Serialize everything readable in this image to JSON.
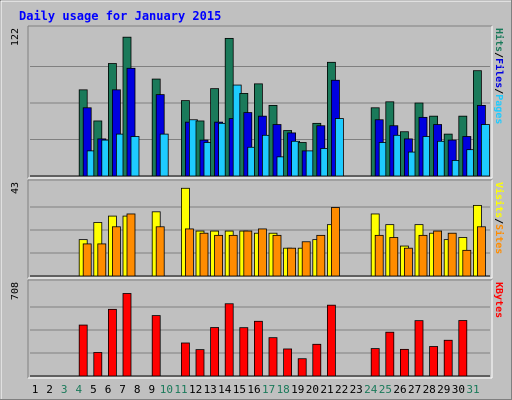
{
  "chart_data": {
    "type": "bar",
    "title": "Daily usage for January 2015",
    "categories": [
      "1",
      "2",
      "3",
      "4",
      "5",
      "6",
      "7",
      "8",
      "9",
      "10",
      "11",
      "12",
      "13",
      "14",
      "15",
      "16",
      "17",
      "18",
      "19",
      "20",
      "21",
      "22",
      "23",
      "24",
      "25",
      "26",
      "27",
      "28",
      "29",
      "30",
      "31"
    ],
    "weekend_days": [
      "3",
      "4",
      "10",
      "11",
      "17",
      "18",
      "24",
      "25",
      "31"
    ],
    "panels": [
      {
        "name": "hits-files-pages",
        "max_label": "122",
        "ymax": 122,
        "ylabel_parts": [
          "Pages",
          "/",
          "Files",
          "/",
          "Hits"
        ],
        "series": [
          {
            "name": "Hits",
            "color": "#1a7a5a",
            "values": [
              0,
              0,
              72,
              46,
              94,
              116,
              0,
              81,
              0,
              63,
              46,
              73,
              115,
              69,
              77,
              59,
              38,
              28,
              44,
              95,
              0,
              0,
              57,
              62,
              37,
              61,
              50,
              35,
              50,
              88,
              0
            ]
          },
          {
            "name": "Files",
            "color": "#0000e0",
            "values": [
              0,
              0,
              57,
              31,
              72,
              90,
              0,
              68,
              0,
              45,
              30,
              45,
              48,
              53,
              50,
              43,
              36,
              21,
              42,
              80,
              0,
              0,
              47,
              42,
              31,
              49,
              43,
              30,
              33,
              59,
              0
            ]
          },
          {
            "name": "Pages",
            "color": "#1ecbff",
            "values": [
              0,
              0,
              21,
              30,
              35,
              33,
              0,
              35,
              0,
              47,
              28,
              44,
              76,
              24,
              34,
              16,
              29,
              21,
              23,
              48,
              0,
              0,
              28,
              34,
              20,
              33,
              29,
              13,
              22,
              43,
              0
            ]
          }
        ]
      },
      {
        "name": "visits-sites",
        "max_label": "43",
        "ymax": 43,
        "ylabel_parts": [
          "Sites",
          "/",
          "Visits"
        ],
        "series": [
          {
            "name": "Visits",
            "color": "#ffff00",
            "values": [
              0,
              0,
              17,
              25,
              28,
              28,
              0,
              30,
              0,
              41,
              21,
              21,
              21,
              21,
              20,
              20,
              13,
              13,
              17,
              24,
              0,
              0,
              29,
              24,
              14,
              24,
              20,
              17,
              18,
              33,
              0
            ]
          },
          {
            "name": "Sites",
            "color": "#ff8c00",
            "values": [
              0,
              0,
              15,
              15,
              23,
              29,
              0,
              23,
              0,
              22,
              20,
              19,
              19,
              21,
              22,
              19,
              13,
              16,
              19,
              32,
              0,
              0,
              19,
              18,
              13,
              19,
              21,
              20,
              12,
              23,
              0
            ]
          }
        ]
      },
      {
        "name": "kbytes",
        "max_label": "708",
        "ymax": 708,
        "ylabel_parts": [
          "KBytes"
        ],
        "series": [
          {
            "name": "KBytes",
            "color": "#ff0000",
            "values": [
              0,
              0,
              392,
              181,
              513,
              635,
              0,
              465,
              0,
              254,
              203,
              373,
              556,
              372,
              421,
              295,
              208,
              133,
              244,
              545,
              0,
              0,
              211,
              337,
              205,
              426,
              227,
              275,
              427,
              0,
              0
            ]
          }
        ]
      }
    ]
  },
  "ylabel_colors": {
    "Pages": "#1ecbff",
    "Files": "#0000e0",
    "Hits": "#1a7a5a",
    "Sites": "#ff8c00",
    "Visits": "#ffff00",
    "KBytes": "#ff0000",
    "sep": "#000000"
  },
  "colors": {
    "title": "#0000ff",
    "weekday_label": "#000000",
    "weekend_label": "#1a7a5a",
    "plot_bg": "#c0c0c0",
    "grid": "#808080"
  }
}
